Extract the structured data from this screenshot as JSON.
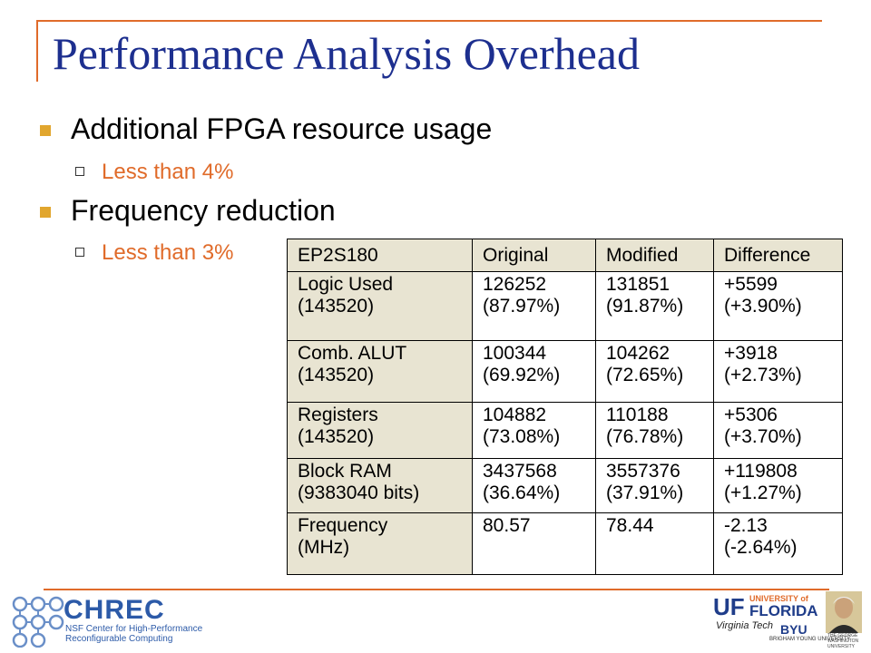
{
  "slide": {
    "title": "Performance Analysis Overhead",
    "bullets": [
      {
        "text": "Additional FPGA resource usage",
        "sub": "Less than 4%"
      },
      {
        "text": "Frequency reduction",
        "sub": "Less than 3%"
      }
    ]
  },
  "table": {
    "headers": [
      "EP2S180",
      "Original",
      "Modified",
      "Difference"
    ],
    "rows": [
      {
        "label": [
          "Logic Used",
          "(143520)"
        ],
        "original": [
          "126252",
          "(87.97%)"
        ],
        "modified": [
          "131851",
          "(91.87%)"
        ],
        "difference": [
          "+5599",
          "(+3.90%)"
        ]
      },
      {
        "label": [
          "Comb. ALUT",
          "(143520)"
        ],
        "original": [
          "100344",
          "(69.92%)"
        ],
        "modified": [
          "104262",
          "(72.65%)"
        ],
        "difference": [
          "+3918",
          "(+2.73%)"
        ]
      },
      {
        "label": [
          "Registers",
          "(143520)"
        ],
        "original": [
          "104882",
          "(73.08%)"
        ],
        "modified": [
          "110188",
          "(76.78%)"
        ],
        "difference": [
          "+5306",
          "(+3.70%)"
        ]
      },
      {
        "label": [
          "Block RAM",
          "(9383040 bits)"
        ],
        "original": [
          "3437568",
          "(36.64%)"
        ],
        "modified": [
          "3557376",
          "(37.91%)"
        ],
        "difference": [
          "+119808",
          "(+1.27%)"
        ]
      },
      {
        "label": [
          "Frequency",
          "(MHz)"
        ],
        "original": [
          "80.57",
          ""
        ],
        "modified": [
          "78.44",
          ""
        ],
        "difference": [
          "-2.13",
          "(-2.64%)"
        ]
      }
    ]
  },
  "footer": {
    "chrec_name": "CHREC",
    "chrec_line1": "NSF Center for High-Performance",
    "chrec_line2": "Reconfigurable Computing",
    "uf_mark": "UF",
    "uf_line1": "UNIVERSITY of",
    "uf_line2": "FLORIDA",
    "vt_name": "Virginia Tech",
    "byu_name": "BYU",
    "byu_sub": "BRIGHAM YOUNG UNIVERSITY",
    "gw_sub": "THE GEORGE WASHINGTON UNIVERSITY",
    "colors": {
      "accent": "#e06b2a",
      "title": "#1d2f8f",
      "bullet": "#e1a62e",
      "header_fill": "#e8e4d2",
      "logo_blue": "#2c5aa8"
    }
  }
}
